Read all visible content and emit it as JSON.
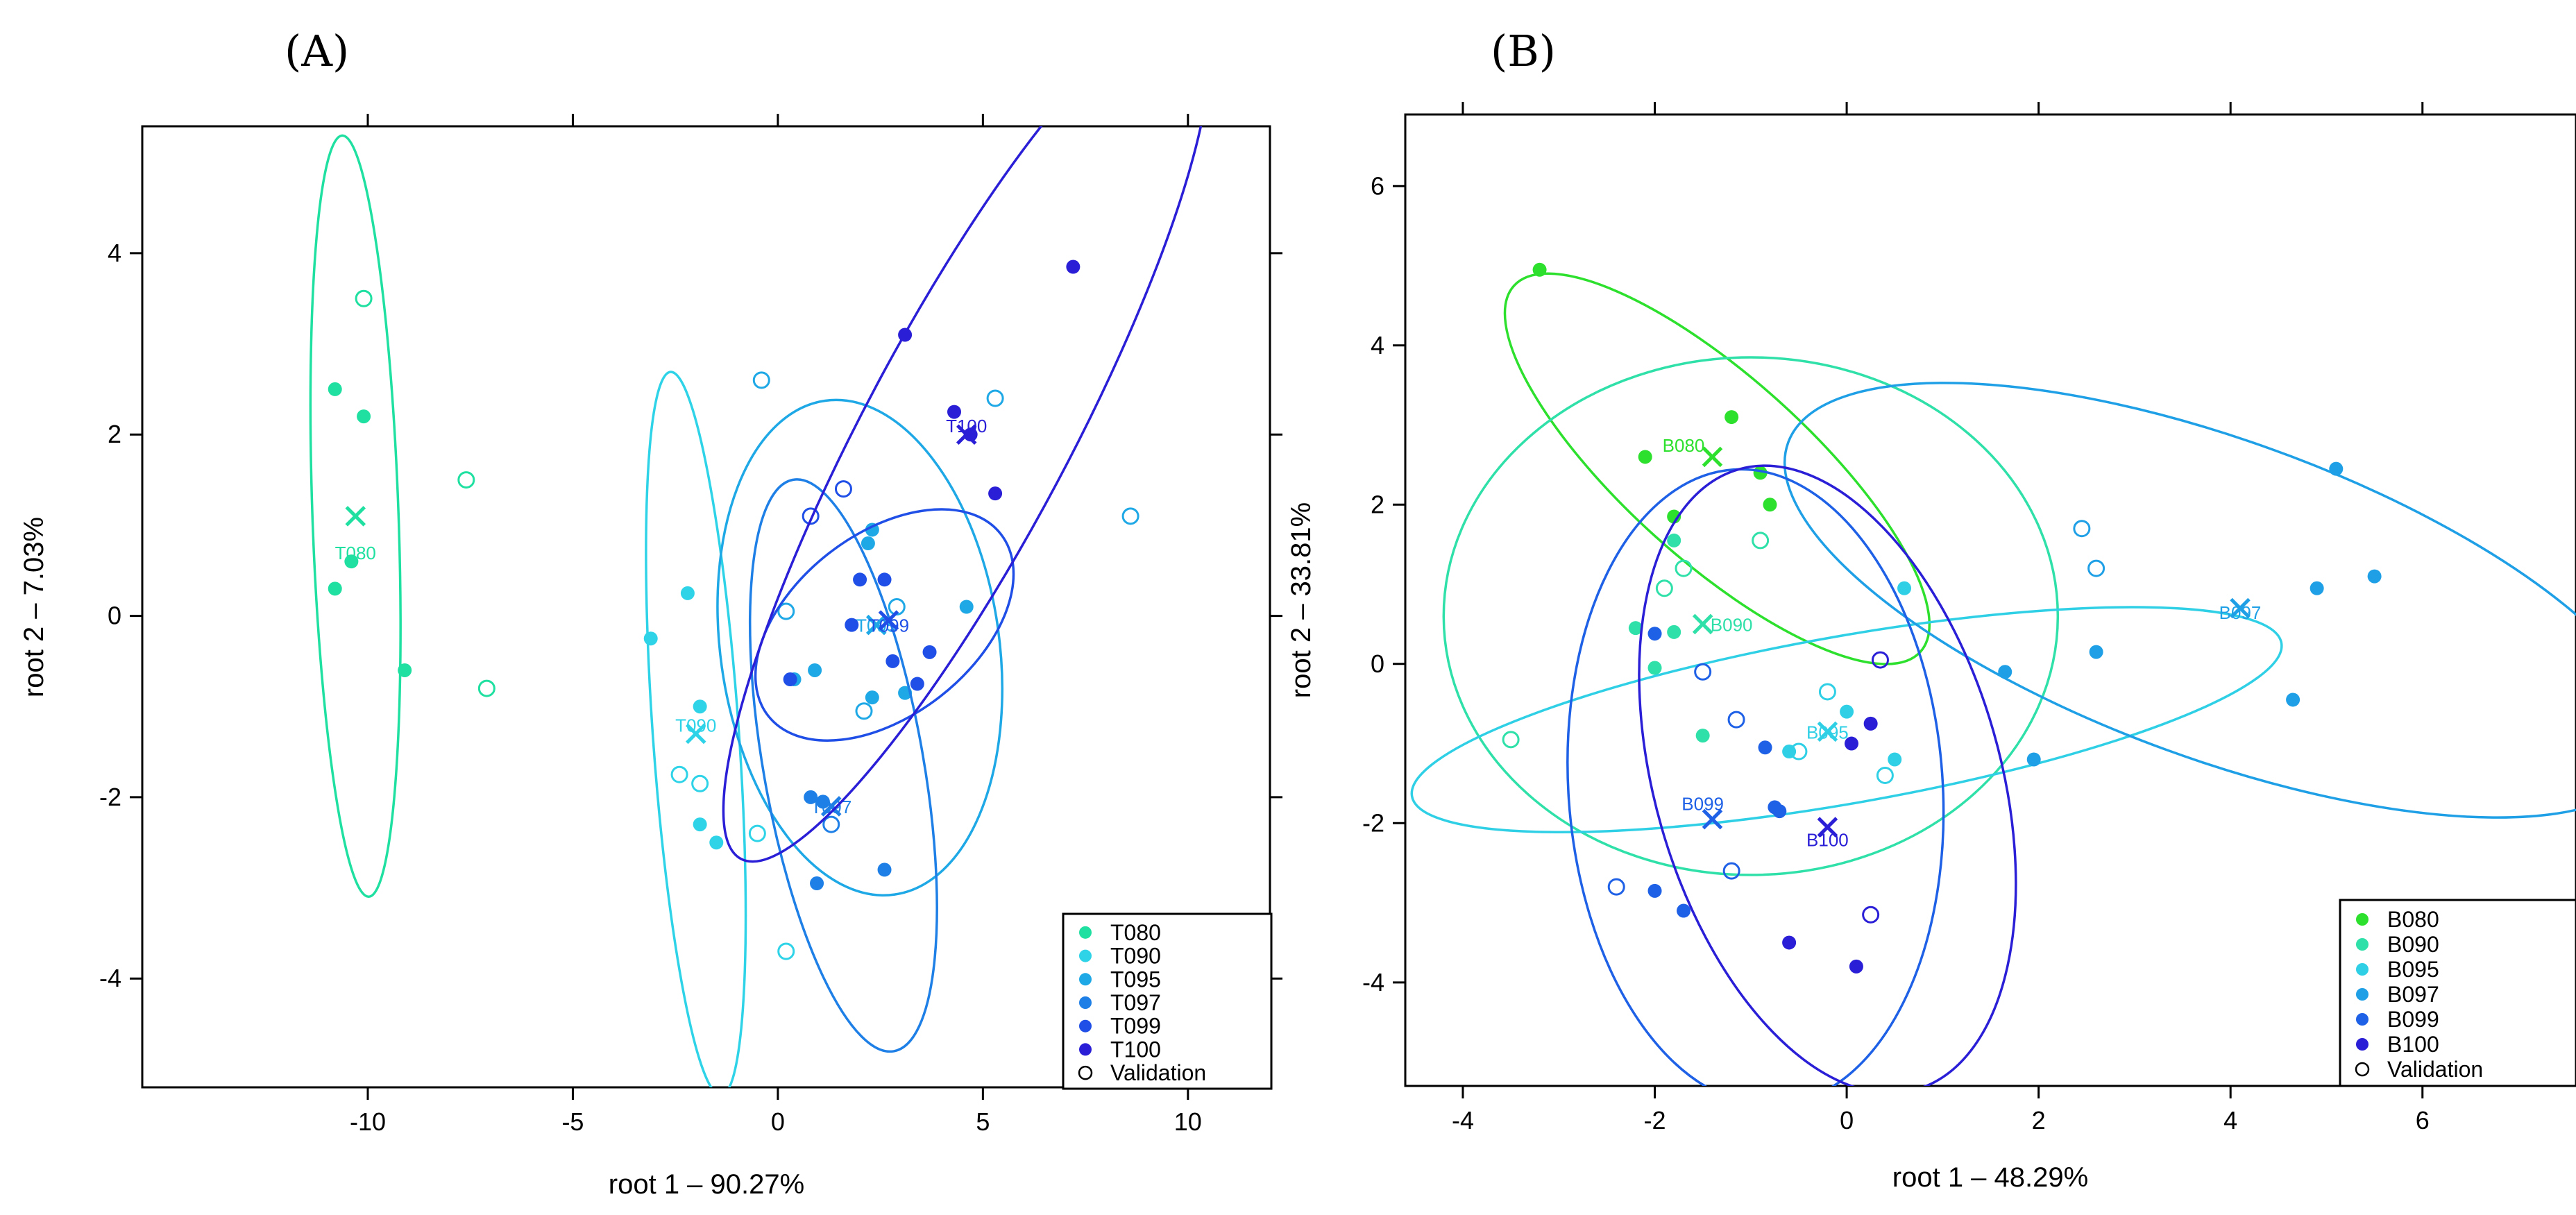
{
  "colors": {
    "T080": "#1fe0a0",
    "T090": "#2fd3e8",
    "T095": "#1fa8e6",
    "T097": "#1e7fe6",
    "T099": "#1f4fe6",
    "T100": "#2a1fd6",
    "B080": "#2ee02e",
    "B090": "#2fe0a8",
    "B095": "#2fd0e6",
    "B097": "#1fa0e6",
    "B099": "#1e60e6",
    "B100": "#2a1fd6"
  },
  "chart_data": [
    {
      "type": "scatter",
      "panel_label": "(A)",
      "xlabel": "root 1 – 90.27%",
      "ylabel": "root 2 – 7.03%",
      "xlim": [
        -15.5,
        12
      ],
      "ylim": [
        -5.2,
        5.4
      ],
      "xticks": [
        -10,
        -5,
        0,
        5,
        10
      ],
      "yticks": [
        -4,
        -2,
        0,
        2,
        4
      ],
      "legend": [
        "T080",
        "T090",
        "T095",
        "T097",
        "T099",
        "T100",
        "Validation"
      ],
      "groups": [
        {
          "name": "T080",
          "label": "T080",
          "centroid": [
            -10.3,
            1.1
          ],
          "label_pos": [
            -10.3,
            0.7
          ],
          "ellipse": {
            "cx": -10.3,
            "cy": 1.1,
            "rx": 1.05,
            "ry": 4.2,
            "angle": 2.0
          },
          "points": [
            [
              -10.8,
              2.5
            ],
            [
              -10.1,
              2.2
            ],
            [
              -10.4,
              0.6
            ],
            [
              -10.8,
              0.3
            ],
            [
              -9.1,
              -0.6
            ]
          ],
          "validation": [
            [
              -10.1,
              3.5
            ],
            [
              -7.6,
              1.5
            ],
            [
              -7.1,
              -0.8
            ]
          ]
        },
        {
          "name": "T090",
          "label": "T090",
          "centroid": [
            -2.0,
            -1.3
          ],
          "label_pos": [
            -2.0,
            -1.2
          ],
          "ellipse": {
            "cx": -2.0,
            "cy": -1.3,
            "rx": 1.05,
            "ry": 4.0,
            "angle": 4.0
          },
          "points": [
            [
              -2.2,
              0.25
            ],
            [
              -3.1,
              -0.25
            ],
            [
              -1.9,
              -1.0
            ],
            [
              -1.9,
              -2.3
            ],
            [
              -1.5,
              -2.5
            ]
          ],
          "validation": [
            [
              -2.4,
              -1.75
            ],
            [
              -1.9,
              -1.85
            ],
            [
              -0.5,
              -2.4
            ],
            [
              0.2,
              -3.7
            ]
          ]
        },
        {
          "name": "T095",
          "label": "T095",
          "centroid": [
            2.4,
            -0.1
          ],
          "label_pos": [
            2.4,
            -0.1
          ],
          "ellipse": {
            "cx": 2.0,
            "cy": -0.35,
            "rx": 3.4,
            "ry": 2.75,
            "angle": 8.0
          },
          "points": [
            [
              2.3,
              0.95
            ],
            [
              2.2,
              0.8
            ],
            [
              4.6,
              0.1
            ],
            [
              0.9,
              -0.6
            ],
            [
              2.3,
              -0.9
            ],
            [
              3.1,
              -0.85
            ],
            [
              0.4,
              -0.7
            ]
          ],
          "validation": [
            [
              -0.4,
              2.6
            ],
            [
              2.9,
              0.1
            ],
            [
              0.2,
              0.05
            ],
            [
              2.1,
              -1.05
            ],
            [
              5.3,
              2.4
            ],
            [
              8.6,
              1.1
            ]
          ]
        },
        {
          "name": "T097",
          "label": "T097",
          "centroid": [
            1.3,
            -2.1
          ],
          "label_pos": [
            1.3,
            -2.1
          ],
          "ellipse": {
            "cx": 1.6,
            "cy": -1.65,
            "rx": 1.95,
            "ry": 3.2,
            "angle": 10.0
          },
          "points": [
            [
              0.8,
              -2.0
            ],
            [
              1.1,
              -2.05
            ],
            [
              2.6,
              -2.8
            ],
            [
              0.95,
              -2.95
            ]
          ],
          "validation": [
            [
              1.3,
              -2.3
            ]
          ]
        },
        {
          "name": "T099",
          "label": "T099",
          "centroid": [
            2.7,
            -0.05
          ],
          "label_pos": [
            2.7,
            -0.1
          ],
          "ellipse": {
            "cx": 2.6,
            "cy": -0.1,
            "rx": 3.6,
            "ry": 1.0,
            "angle": 38.0
          },
          "points": [
            [
              2.0,
              0.4
            ],
            [
              2.6,
              0.4
            ],
            [
              1.8,
              -0.1
            ],
            [
              3.7,
              -0.4
            ],
            [
              2.8,
              -0.5
            ],
            [
              3.4,
              -0.75
            ],
            [
              0.3,
              -0.7
            ]
          ],
          "validation": [
            [
              0.8,
              1.1
            ],
            [
              1.6,
              1.4
            ]
          ]
        },
        {
          "name": "T100",
          "label": "T100",
          "centroid": [
            4.6,
            2.0
          ],
          "label_pos": [
            4.6,
            2.1
          ],
          "ellipse": {
            "cx": 4.6,
            "cy": 2.0,
            "rx": 2.5,
            "ry": 5.3,
            "angle": -28.0
          },
          "points": [
            [
              3.1,
              3.1
            ],
            [
              4.3,
              2.25
            ],
            [
              4.7,
              2.0
            ],
            [
              7.2,
              3.85
            ],
            [
              5.3,
              1.35
            ]
          ],
          "validation": []
        }
      ]
    },
    {
      "type": "scatter",
      "panel_label": "(B)",
      "xlabel": "root 1 – 48.29%",
      "ylabel": "root 2 – 33.81%",
      "xlim": [
        -4.6,
        7.6
      ],
      "ylim": [
        -5.3,
        6.9
      ],
      "xticks": [
        -4,
        -2,
        0,
        2,
        4,
        6
      ],
      "yticks": [
        -4,
        -2,
        0,
        2,
        4,
        6
      ],
      "legend": [
        "B080",
        "B090",
        "B095",
        "B097",
        "B099",
        "B100",
        "Validation"
      ],
      "groups": [
        {
          "name": "B080",
          "label": "B080",
          "centroid": [
            -1.4,
            2.6
          ],
          "label_pos": [
            -1.7,
            2.75
          ],
          "ellipse": {
            "cx": -1.35,
            "cy": 2.45,
            "rx": 2.85,
            "ry": 1.15,
            "angle": -42.0
          },
          "points": [
            [
              -3.2,
              4.95
            ],
            [
              -2.1,
              2.6
            ],
            [
              -1.2,
              3.1
            ],
            [
              -0.9,
              2.4
            ],
            [
              -0.8,
              2.0
            ],
            [
              -1.8,
              1.85
            ]
          ],
          "validation": []
        },
        {
          "name": "B090",
          "label": "B090",
          "centroid": [
            -1.5,
            0.5
          ],
          "label_pos": [
            -1.2,
            0.5
          ],
          "ellipse": {
            "cx": -1.0,
            "cy": 0.6,
            "rx": 3.2,
            "ry": 3.25,
            "angle": 0.0
          },
          "points": [
            [
              -1.8,
              1.55
            ],
            [
              -2.2,
              0.45
            ],
            [
              -1.8,
              0.4
            ],
            [
              -2.0,
              -0.05
            ],
            [
              -1.5,
              -0.9
            ]
          ],
          "validation": [
            [
              -0.9,
              1.55
            ],
            [
              -1.7,
              1.2
            ],
            [
              -1.9,
              0.95
            ],
            [
              -3.5,
              -0.95
            ]
          ]
        },
        {
          "name": "B095",
          "label": "B095",
          "centroid": [
            -0.2,
            -0.85
          ],
          "label_pos": [
            -0.2,
            -0.85
          ],
          "ellipse": {
            "cx": 0.0,
            "cy": -0.7,
            "rx": 4.6,
            "ry": 1.05,
            "angle": 10.0
          },
          "points": [
            [
              0.0,
              -0.6
            ],
            [
              0.6,
              0.95
            ],
            [
              0.5,
              -1.2
            ],
            [
              -0.6,
              -1.1
            ]
          ],
          "validation": [
            [
              -0.2,
              -0.35
            ],
            [
              0.4,
              -1.4
            ],
            [
              -0.5,
              -1.1
            ]
          ]
        },
        {
          "name": "B097",
          "label": "B097",
          "centroid": [
            4.1,
            0.7
          ],
          "label_pos": [
            4.1,
            0.65
          ],
          "ellipse": {
            "cx": 3.9,
            "cy": 0.8,
            "rx": 4.8,
            "ry": 2.0,
            "angle": -20.0
          },
          "points": [
            [
              5.1,
              2.45
            ],
            [
              4.9,
              0.95
            ],
            [
              5.5,
              1.1
            ],
            [
              2.6,
              0.15
            ],
            [
              4.65,
              -0.45
            ],
            [
              1.65,
              -0.1
            ],
            [
              1.95,
              -1.2
            ]
          ],
          "validation": [
            [
              2.45,
              1.7
            ],
            [
              2.6,
              1.2
            ]
          ]
        },
        {
          "name": "B099",
          "label": "B099",
          "centroid": [
            -1.4,
            -1.95
          ],
          "label_pos": [
            -1.5,
            -1.75
          ],
          "ellipse": {
            "cx": -0.95,
            "cy": -1.55,
            "rx": 1.95,
            "ry": 4.0,
            "angle": 4.0
          },
          "points": [
            [
              -0.85,
              -1.05
            ],
            [
              -0.7,
              -1.85
            ],
            [
              -0.75,
              -1.8
            ],
            [
              -2.0,
              -2.85
            ],
            [
              -1.7,
              -3.1
            ],
            [
              -2.0,
              0.38
            ]
          ],
          "validation": [
            [
              -1.5,
              -0.1
            ],
            [
              -1.15,
              -0.7
            ],
            [
              -1.2,
              -2.6
            ],
            [
              -2.4,
              -2.8
            ]
          ]
        },
        {
          "name": "B100",
          "label": "B100",
          "centroid": [
            -0.2,
            -2.05
          ],
          "label_pos": [
            -0.2,
            -2.2
          ],
          "ellipse": {
            "cx": -0.2,
            "cy": -1.45,
            "rx": 1.8,
            "ry": 4.05,
            "angle": 16.0
          },
          "points": [
            [
              0.05,
              -1.0
            ],
            [
              0.25,
              -0.75
            ],
            [
              -0.6,
              -3.5
            ],
            [
              0.1,
              -3.8
            ]
          ],
          "validation": [
            [
              0.35,
              0.05
            ],
            [
              0.25,
              -3.15
            ]
          ]
        }
      ]
    }
  ]
}
